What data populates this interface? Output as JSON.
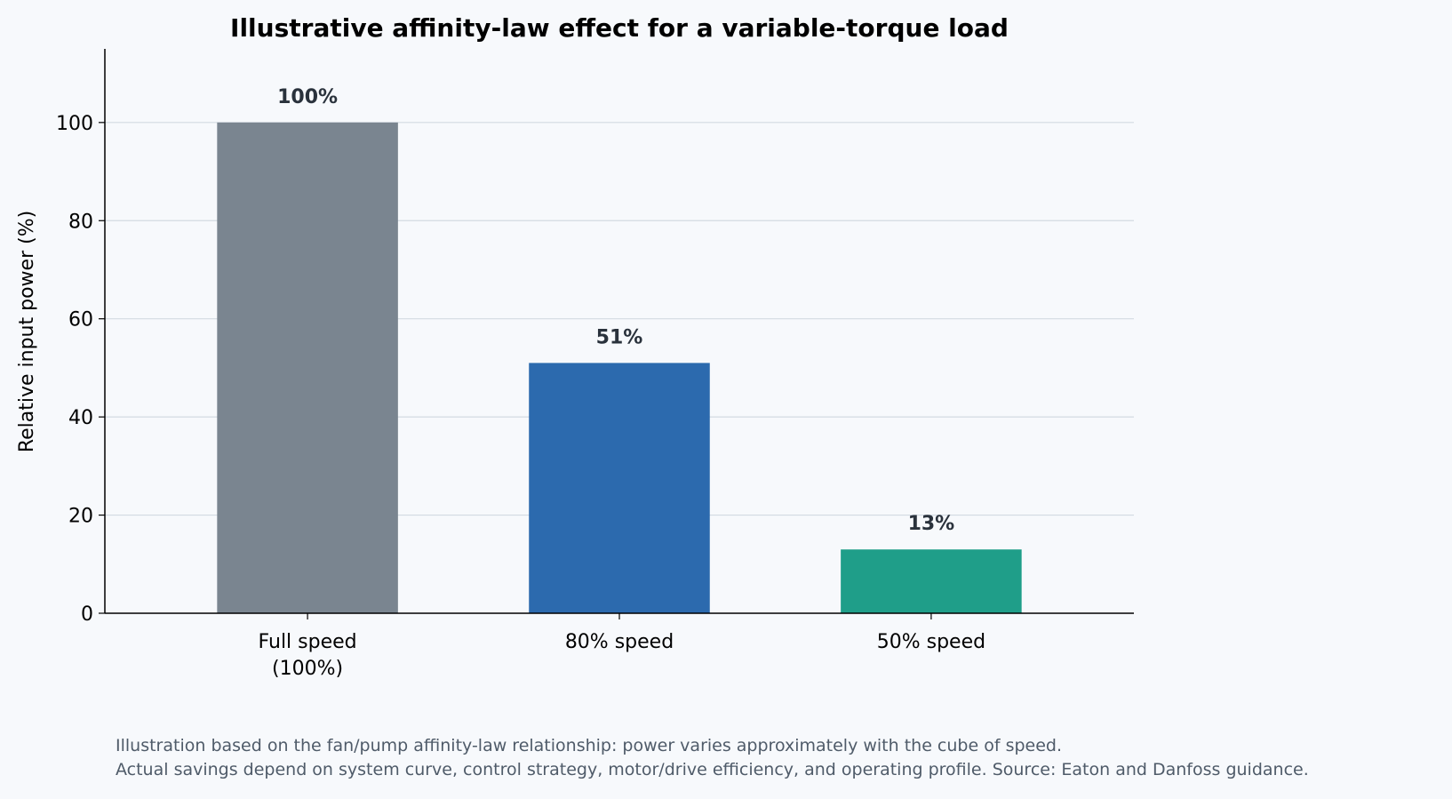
{
  "chart_data": {
    "type": "bar",
    "title": "Illustrative affinity-law effect for a variable-torque load",
    "xlabel": "",
    "ylabel": "Relative input power (%)",
    "categories": [
      [
        "Full speed",
        "(100%)"
      ],
      [
        "80% speed"
      ],
      [
        "50% speed"
      ]
    ],
    "values": [
      100,
      51,
      13
    ],
    "value_labels": [
      "100%",
      "51%",
      "13%"
    ],
    "colors": [
      "#7a8590",
      "#2c6aae",
      "#1f9e89"
    ],
    "yticks": [
      "0",
      "20",
      "40",
      "60",
      "80",
      "100"
    ],
    "ylim": [
      0,
      115
    ],
    "grid": "horizontal",
    "legend": "none"
  },
  "notes": {
    "line1": "Illustration based on the fan/pump affinity-law relationship: power varies approximately with the cube of speed.",
    "line2": "Actual savings depend on system curve, control strategy, motor/drive efficiency, and operating profile. Source: Eaton and Danfoss guidance."
  }
}
